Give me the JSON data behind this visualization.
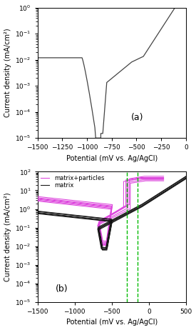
{
  "panel_a": {
    "label": "(a)",
    "xlabel": "Potential (mV vs. Ag/AgCl)",
    "ylabel": "Current density (mA/cm²)",
    "xlim": [
      -1500,
      0
    ],
    "ylim_log": [
      -5,
      0
    ],
    "color": "#444444"
  },
  "panel_b": {
    "label": "(b)",
    "xlabel": "Potential (mV vs. Ag/AgCl)",
    "ylabel": "Current density (mA/cm²)",
    "xlim": [
      -1500,
      500
    ],
    "ylim_log": [
      -5,
      2
    ],
    "color_matrix": "#111111",
    "color_particles": "#dd44dd",
    "dashed_lines": [
      -300,
      -150
    ],
    "dashed_color": "#00bb00",
    "legend_matrix": "matrix",
    "legend_particles": "matrix+particles"
  }
}
